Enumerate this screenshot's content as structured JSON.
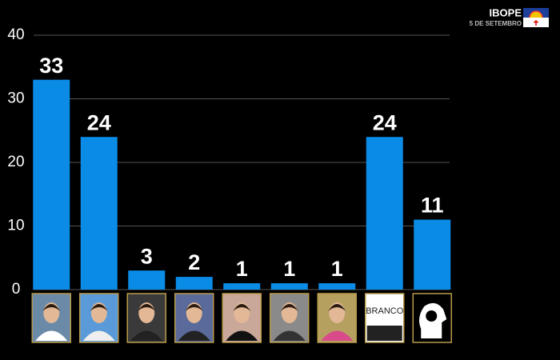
{
  "chart_data": {
    "type": "bar",
    "brand": "IBOPE",
    "date": "5 DE SETEMBRO",
    "categories": [
      null,
      null,
      null,
      null,
      null,
      null,
      null,
      "BRANCO",
      null
    ],
    "values": [
      33,
      24,
      3,
      2,
      1,
      1,
      1,
      24,
      11
    ],
    "color": "#0a8be6",
    "ylim": [
      0,
      40
    ],
    "yticks": [
      0,
      10,
      20,
      30,
      40
    ],
    "grid": true
  }
}
